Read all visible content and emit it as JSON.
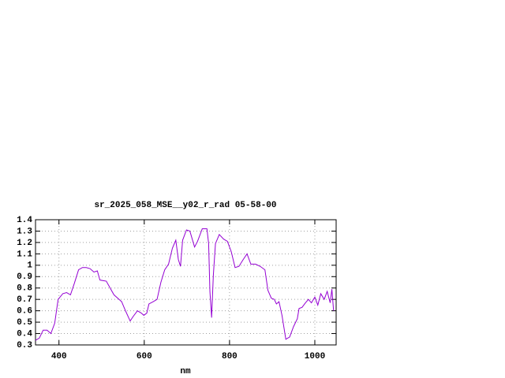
{
  "chart_data": {
    "type": "line",
    "title": "sr_2025_058_MSE__y02_r_rad 05-58-00",
    "x_label": "nm",
    "xlim": [
      345,
      1050
    ],
    "xticks": [
      400,
      600,
      800,
      1000
    ],
    "ylim": [
      0.3,
      1.4
    ],
    "yticks": [
      0.3,
      0.4,
      0.5,
      0.6,
      0.7,
      0.8,
      0.9,
      1,
      1.1,
      1.2,
      1.3,
      1.4
    ],
    "grid": true,
    "series": [
      {
        "color": "#9400d3",
        "x": [
          345,
          354,
          363,
          372,
          381,
          390,
          398,
          409,
          418,
          427,
          436,
          446,
          455,
          464,
          473,
          482,
          490,
          496,
          511,
          520,
          529,
          538,
          547,
          556,
          567,
          574,
          584,
          593,
          599,
          606,
          611,
          621,
          630,
          639,
          648,
          657,
          666,
          674,
          680,
          685,
          690,
          699,
          707,
          718,
          725,
          736,
          747,
          751,
          754,
          758,
          762,
          767,
          776,
          786,
          795,
          804,
          813,
          822,
          832,
          841,
          850,
          861,
          872,
          883,
          890,
          898,
          905,
          910,
          916,
          923,
          932,
          941,
          950,
          959,
          963,
          970,
          978,
          985,
          992,
          1000,
          1007,
          1014,
          1022,
          1029,
          1036,
          1040,
          1044
        ],
        "values": [
          0.34,
          0.36,
          0.43,
          0.43,
          0.4,
          0.49,
          0.7,
          0.75,
          0.76,
          0.74,
          0.84,
          0.96,
          0.98,
          0.98,
          0.97,
          0.94,
          0.95,
          0.87,
          0.86,
          0.8,
          0.74,
          0.71,
          0.68,
          0.6,
          0.51,
          0.55,
          0.6,
          0.58,
          0.56,
          0.58,
          0.66,
          0.68,
          0.7,
          0.85,
          0.96,
          1.01,
          1.15,
          1.22,
          1.05,
          0.99,
          1.22,
          1.31,
          1.3,
          1.16,
          1.21,
          1.32,
          1.32,
          1.19,
          0.77,
          0.54,
          0.91,
          1.19,
          1.27,
          1.23,
          1.21,
          1.12,
          0.98,
          0.99,
          1.05,
          1.1,
          1.01,
          1.01,
          0.99,
          0.96,
          0.78,
          0.71,
          0.7,
          0.66,
          0.68,
          0.56,
          0.35,
          0.37,
          0.46,
          0.53,
          0.62,
          0.63,
          0.67,
          0.7,
          0.67,
          0.72,
          0.65,
          0.75,
          0.7,
          0.77,
          0.67,
          0.79,
          0.6
        ]
      }
    ]
  }
}
